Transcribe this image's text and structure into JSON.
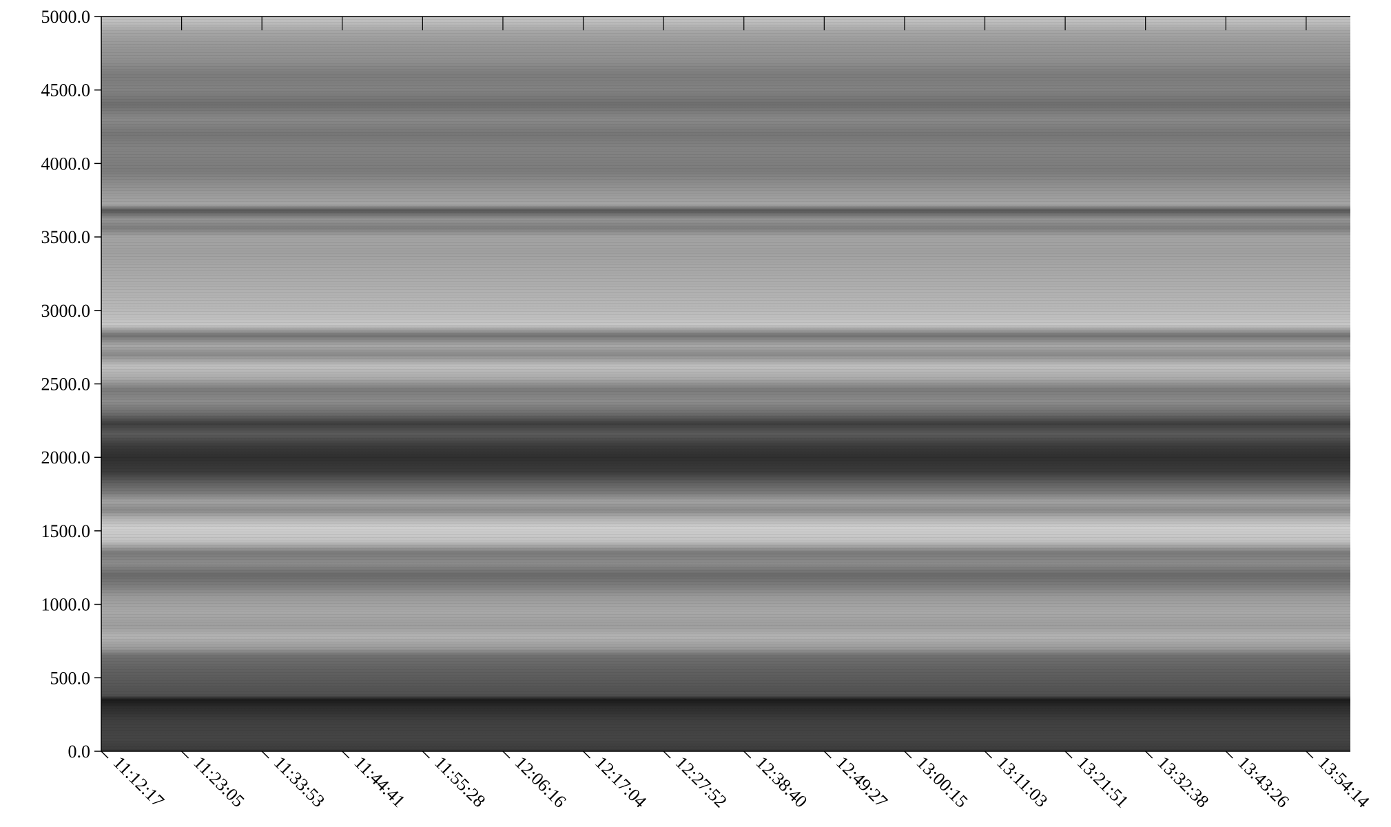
{
  "chart_data": {
    "type": "heatmap",
    "colormap": "grayscale",
    "title": "",
    "xlabel": "",
    "ylabel": "",
    "ylim": [
      0,
      5000
    ],
    "y_ticks": [
      "0.0",
      "500.0",
      "1000.0",
      "1500.0",
      "2000.0",
      "2500.0",
      "3000.0",
      "3500.0",
      "4000.0",
      "4500.0",
      "5000.0"
    ],
    "x_ticks": [
      "11:12:17",
      "11:23:05",
      "11:33:53",
      "11:44:41",
      "11:55:28",
      "12:06:16",
      "12:17:04",
      "12:27:52",
      "12:38:40",
      "12:49:27",
      "13:00:15",
      "13:11:03",
      "13:21:51",
      "13:32:38",
      "13:43:26",
      "13:54:14"
    ],
    "grid": false,
    "intensity_profile": [
      {
        "y": 0,
        "gray": "#3a3a3a"
      },
      {
        "y": 80,
        "gray": "#454545"
      },
      {
        "y": 200,
        "gray": "#404040"
      },
      {
        "y": 300,
        "gray": "#2c2c2c"
      },
      {
        "y": 350,
        "gray": "#1a1a1a"
      },
      {
        "y": 380,
        "gray": "#505050"
      },
      {
        "y": 480,
        "gray": "#5a5a5a"
      },
      {
        "y": 560,
        "gray": "#626262"
      },
      {
        "y": 650,
        "gray": "#707070"
      },
      {
        "y": 700,
        "gray": "#9a9a9a"
      },
      {
        "y": 780,
        "gray": "#b3b3b3"
      },
      {
        "y": 850,
        "gray": "#9e9e9e"
      },
      {
        "y": 950,
        "gray": "#a8a8a8"
      },
      {
        "y": 1050,
        "gray": "#9a9a9a"
      },
      {
        "y": 1130,
        "gray": "#7c7c7c"
      },
      {
        "y": 1200,
        "gray": "#6a6a6a"
      },
      {
        "y": 1280,
        "gray": "#8c8c8c"
      },
      {
        "y": 1350,
        "gray": "#7a7a7a"
      },
      {
        "y": 1430,
        "gray": "#c2c2c2"
      },
      {
        "y": 1520,
        "gray": "#cfcfcf"
      },
      {
        "y": 1580,
        "gray": "#b5b5b5"
      },
      {
        "y": 1640,
        "gray": "#8a8a8a"
      },
      {
        "y": 1700,
        "gray": "#a2a2a2"
      },
      {
        "y": 1760,
        "gray": "#7a7a7a"
      },
      {
        "y": 1830,
        "gray": "#5e5e5e"
      },
      {
        "y": 1900,
        "gray": "#3c3c3c"
      },
      {
        "y": 2000,
        "gray": "#2f2f2f"
      },
      {
        "y": 2080,
        "gray": "#3c3c3c"
      },
      {
        "y": 2160,
        "gray": "#5b5b5b"
      },
      {
        "y": 2230,
        "gray": "#3e3e3e"
      },
      {
        "y": 2300,
        "gray": "#6e6e6e"
      },
      {
        "y": 2380,
        "gray": "#8c8c8c"
      },
      {
        "y": 2460,
        "gray": "#7a7a7a"
      },
      {
        "y": 2540,
        "gray": "#ababab"
      },
      {
        "y": 2620,
        "gray": "#c0c0c0"
      },
      {
        "y": 2700,
        "gray": "#8a8a8a"
      },
      {
        "y": 2760,
        "gray": "#a8a8a8"
      },
      {
        "y": 2830,
        "gray": "#727272"
      },
      {
        "y": 2900,
        "gray": "#c6c6c6"
      },
      {
        "y": 3000,
        "gray": "#b9b9b9"
      },
      {
        "y": 3100,
        "gray": "#b2b2b2"
      },
      {
        "y": 3250,
        "gray": "#a9a9a9"
      },
      {
        "y": 3400,
        "gray": "#a0a0a0"
      },
      {
        "y": 3500,
        "gray": "#a4a4a4"
      },
      {
        "y": 3560,
        "gray": "#7e7e7e"
      },
      {
        "y": 3620,
        "gray": "#949494"
      },
      {
        "y": 3680,
        "gray": "#575757"
      },
      {
        "y": 3720,
        "gray": "#a5a5a5"
      },
      {
        "y": 3800,
        "gray": "#999999"
      },
      {
        "y": 3950,
        "gray": "#7c7c7c"
      },
      {
        "y": 4100,
        "gray": "#838383"
      },
      {
        "y": 4200,
        "gray": "#767676"
      },
      {
        "y": 4300,
        "gray": "#898989"
      },
      {
        "y": 4400,
        "gray": "#6f6f6f"
      },
      {
        "y": 4500,
        "gray": "#828282"
      },
      {
        "y": 4600,
        "gray": "#7c7c7c"
      },
      {
        "y": 4700,
        "gray": "#8f8f8f"
      },
      {
        "y": 4800,
        "gray": "#979797"
      },
      {
        "y": 4900,
        "gray": "#a6a6a6"
      },
      {
        "y": 4960,
        "gray": "#bdbdbd"
      },
      {
        "y": 5000,
        "gray": "#c4c4c4"
      }
    ]
  }
}
